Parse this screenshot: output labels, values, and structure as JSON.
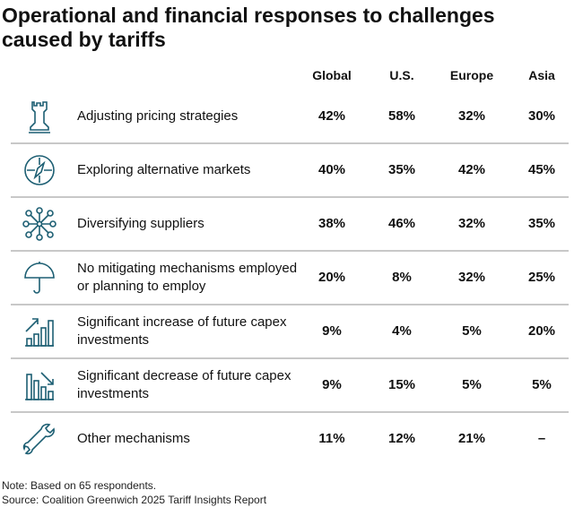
{
  "title": "Operational and financial responses to challenges caused by tariffs",
  "chart_data": {
    "type": "table",
    "title": "Operational and financial responses to challenges caused by tariffs",
    "columns": [
      "Global",
      "U.S.",
      "Europe",
      "Asia"
    ],
    "rows": [
      {
        "label": "Adjusting pricing strategies",
        "icon": "chess-rook-icon",
        "values": [
          "42%",
          "58%",
          "32%",
          "30%"
        ]
      },
      {
        "label": "Exploring alternative markets",
        "icon": "compass-icon",
        "values": [
          "40%",
          "35%",
          "42%",
          "45%"
        ]
      },
      {
        "label": "Diversifying suppliers",
        "icon": "network-nodes-icon",
        "values": [
          "38%",
          "46%",
          "32%",
          "35%"
        ]
      },
      {
        "label": "No mitigating mechanisms employed or planning to employ",
        "icon": "umbrella-icon",
        "values": [
          "20%",
          "8%",
          "32%",
          "25%"
        ]
      },
      {
        "label": "Significant increase of future capex investments",
        "icon": "bar-chart-up-icon",
        "values": [
          "9%",
          "4%",
          "5%",
          "20%"
        ]
      },
      {
        "label": "Significant decrease of future capex investments",
        "icon": "bar-chart-down-icon",
        "values": [
          "9%",
          "15%",
          "5%",
          "5%"
        ]
      },
      {
        "label": "Other mechanisms",
        "icon": "wrench-icon",
        "values": [
          "11%",
          "12%",
          "21%",
          "–"
        ]
      }
    ]
  },
  "note": "Note: Based on 65 respondents.",
  "source": "Source: Coalition Greenwich 2025 Tariff Insights Report",
  "colors": {
    "icon": "#1d5f73",
    "divider": "#c8c8c8"
  }
}
